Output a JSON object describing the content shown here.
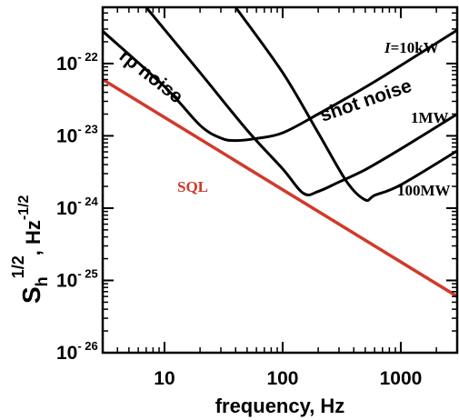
{
  "chart_data": {
    "type": "line",
    "title": "",
    "xlabel": "frequency, Hz",
    "ylabel_main": "S",
    "ylabel_sub": "h",
    "ylabel_sup": "1/2",
    "ylabel_unit": ", Hz",
    "ylabel_unit_sup": "-1/2",
    "x_scale": "log",
    "y_scale": "log",
    "xlim": [
      3,
      3000
    ],
    "ylim": [
      1e-26,
      6e-22
    ],
    "x_ticks": [
      {
        "value": 10,
        "label": "10"
      },
      {
        "value": 100,
        "label": "100"
      },
      {
        "value": 1000,
        "label": "1000"
      }
    ],
    "y_ticks": [
      {
        "value": 1e-22,
        "base": "10",
        "exp": "- 22"
      },
      {
        "value": 1e-23,
        "base": "10",
        "exp": "- 23"
      },
      {
        "value": 1e-24,
        "base": "10",
        "exp": "- 24"
      },
      {
        "value": 1e-25,
        "base": "10",
        "exp": "- 25"
      },
      {
        "value": 1e-26,
        "base": "10",
        "exp": "- 26"
      }
    ],
    "grid": false,
    "sql_color": "#d03a2a",
    "curve_color": "#000000",
    "series": [
      {
        "label": "SQL",
        "points": [
          [
            3,
            6e-23
          ],
          [
            3000,
            6e-26
          ]
        ]
      },
      {
        "label": "I=10kW",
        "points": [
          [
            3,
            2.8e-22
          ],
          [
            10,
            4.8e-23
          ],
          [
            20,
            1.4e-23
          ],
          [
            30,
            9.3e-24
          ],
          [
            40,
            8.6e-24
          ],
          [
            60,
            9.2e-24
          ],
          [
            100,
            1.1e-23
          ],
          [
            200,
            2e-23
          ],
          [
            500,
            4.7e-23
          ],
          [
            1000,
            9.4e-23
          ],
          [
            3000,
            2.9e-22
          ]
        ]
      },
      {
        "label": "1MW",
        "points": [
          [
            7,
            6e-22
          ],
          [
            20,
            7.5e-23
          ],
          [
            50,
            1.2e-23
          ],
          [
            100,
            3.5e-24
          ],
          [
            150,
            1.6e-24
          ],
          [
            200,
            1.7e-24
          ],
          [
            300,
            2.3e-24
          ],
          [
            500,
            3.4e-24
          ],
          [
            1000,
            6.6e-24
          ],
          [
            3000,
            2e-23
          ]
        ]
      },
      {
        "label": "100MW",
        "points": [
          [
            40,
            6e-22
          ],
          [
            100,
            7.5e-23
          ],
          [
            200,
            1.1e-23
          ],
          [
            350,
            2.3e-24
          ],
          [
            500,
            1.3e-24
          ],
          [
            600,
            1.5e-24
          ],
          [
            1000,
            2.1e-24
          ],
          [
            3000,
            6.2e-24
          ]
        ]
      }
    ],
    "annotations": {
      "rp_noise": "rp noise",
      "shot_noise": "shot noise",
      "sql": "SQL",
      "power_10kw_var": "I",
      "power_10kw_val": "=10kW",
      "power_1mw": "1MW",
      "power_100mw": "100MW"
    }
  }
}
